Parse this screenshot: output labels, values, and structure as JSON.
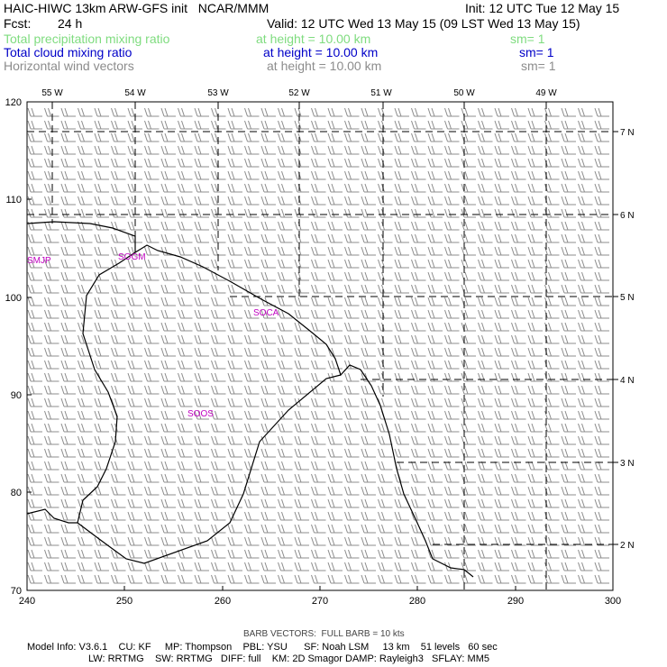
{
  "header": {
    "title_left": "HAIC-HIWC 13km ARW-GFS init   NCAR/MMM",
    "init": "Init: 12 UTC Tue 12 May 15",
    "fcst_label": "Fcst:",
    "fcst_value": "24 h",
    "valid": "Valid: 12 UTC Wed 13 May 15 (09 LST Wed 13 May 15)"
  },
  "fields": [
    {
      "name": "Total precipitation mixing ratio",
      "height": "at height = 10.00 km",
      "sm": "sm= 1",
      "color": "#7fdc7f"
    },
    {
      "name": "Total cloud mixing ratio",
      "height": "at height = 10.00 km",
      "sm": "sm= 1",
      "color": "#0000c8"
    },
    {
      "name": "Horizontal wind vectors",
      "height": "at height = 10.00 km",
      "sm": "sm= 1",
      "color": "#8c8c8c"
    }
  ],
  "map": {
    "x_ticks": [
      "240",
      "250",
      "260",
      "270",
      "280",
      "290",
      "300"
    ],
    "y_ticks": [
      "70",
      "80",
      "90",
      "100",
      "110",
      "120"
    ],
    "lon_labels": [
      "55 W",
      "54 W",
      "53 W",
      "52 W",
      "51 W",
      "50 W",
      "49 W"
    ],
    "lat_labels": [
      "7 N",
      "6 N",
      "5 N",
      "4 N",
      "3 N",
      "2 N"
    ],
    "stations": [
      {
        "id": "SMJP",
        "color": "#c000c0"
      },
      {
        "id": "SOGM",
        "color": "#c000c0"
      },
      {
        "id": "SOCA",
        "color": "#c000c0"
      },
      {
        "id": "SOOS",
        "color": "#c000c0"
      }
    ],
    "barb_label": "BARB VECTORS:  FULL BARB = 10 kts"
  },
  "footer": {
    "line1": "Model Info: V3.6.1    CU: KF     MP: Thompson    PBL: YSU      SF: Noah LSM     13 km    51 levels   60 sec",
    "line2": "LW: RRTMG    SW: RRTMG   DIFF: full    KM: 2D Smagor DAMP: Rayleigh3   SFLAY: MM5"
  }
}
